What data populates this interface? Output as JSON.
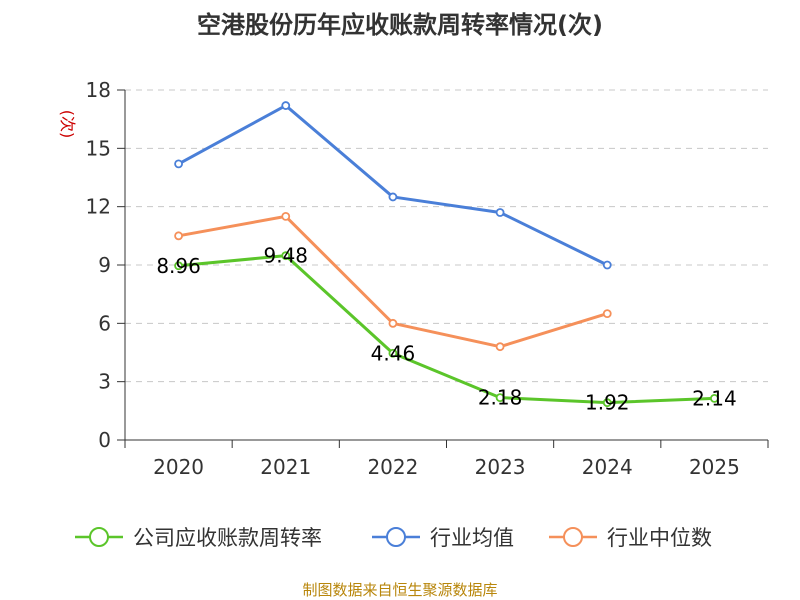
{
  "chart_data": {
    "type": "line",
    "title": "空港股份历年应收账款周转率情况(次)",
    "ylabel": "(次)",
    "xlabel": "",
    "ylim": [
      0,
      18
    ],
    "yticks": [
      "0",
      "3",
      "6",
      "9",
      "12",
      "15",
      "18"
    ],
    "categories": [
      "2020",
      "2021",
      "2022",
      "2023",
      "2024",
      "2025"
    ],
    "grid": true,
    "legend_position": "bottom",
    "series": [
      {
        "name": "公司应收账款周转率",
        "color": "#5bc52a",
        "values": [
          8.96,
          9.48,
          4.46,
          2.18,
          1.92,
          2.14
        ],
        "labels": [
          "8.96",
          "9.48",
          "4.46",
          "2.18",
          "1.92",
          "2.14"
        ]
      },
      {
        "name": "行业均值",
        "color": "#4a7fd8",
        "values": [
          14.2,
          17.2,
          12.5,
          11.7,
          9.0,
          null
        ]
      },
      {
        "name": "行业中位数",
        "color": "#f5905a",
        "values": [
          10.5,
          11.5,
          6.0,
          4.8,
          6.5,
          null
        ]
      }
    ]
  },
  "footer": {
    "source": "制图数据来自恒生聚源数据库"
  }
}
